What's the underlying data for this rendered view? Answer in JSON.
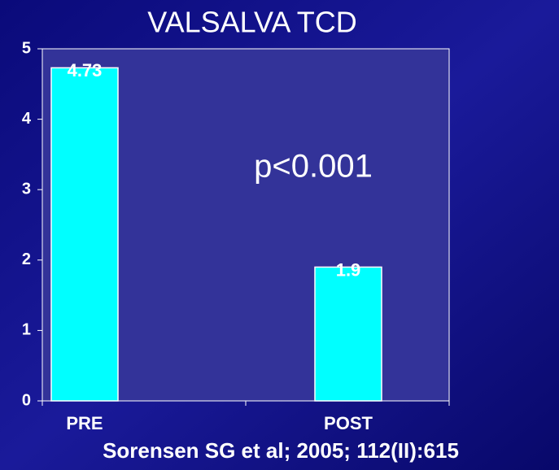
{
  "chart_data": {
    "type": "bar",
    "title": "VALSALVA TCD",
    "categories": [
      "PRE",
      "POST"
    ],
    "values": [
      4.73,
      1.9
    ],
    "color": "#00ffff",
    "ylim": [
      0,
      5
    ],
    "yticks": [
      0,
      1,
      2,
      3,
      4,
      5
    ],
    "annotation": "p<0.001",
    "footer": "Sorensen SG et al; 2005; 112(II):615"
  }
}
